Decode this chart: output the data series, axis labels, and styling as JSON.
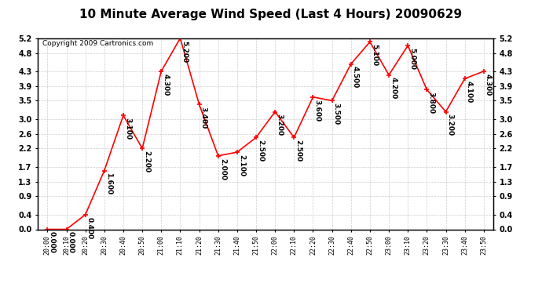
{
  "title": "10 Minute Average Wind Speed (Last 4 Hours) 20090629",
  "copyright": "Copyright 2009 Cartronics.com",
  "x_labels": [
    "20:00",
    "20:10",
    "20:20",
    "20:30",
    "20:40",
    "20:50",
    "21:00",
    "21:10",
    "21:20",
    "21:30",
    "21:40",
    "21:50",
    "22:00",
    "22:10",
    "22:20",
    "22:30",
    "22:40",
    "22:50",
    "23:00",
    "23:10",
    "23:20",
    "23:30",
    "23:40",
    "23:50"
  ],
  "y_values": [
    0.0,
    0.0,
    0.4,
    1.6,
    3.1,
    2.2,
    4.3,
    5.2,
    3.4,
    2.0,
    2.1,
    2.5,
    3.2,
    2.5,
    3.6,
    3.5,
    4.5,
    5.1,
    4.2,
    5.0,
    3.8,
    3.2,
    4.1,
    4.3
  ],
  "y_labels": [
    0.0,
    0.4,
    0.9,
    1.3,
    1.7,
    2.2,
    2.6,
    3.0,
    3.5,
    3.9,
    4.3,
    4.8,
    5.2
  ],
  "annotations": [
    "0.000",
    "0.000",
    "0.400",
    "1.600",
    "3.100",
    "2.200",
    "4.300",
    "5.200",
    "3.400",
    "2.000",
    "2.100",
    "2.500",
    "3.200",
    "2.500",
    "3.600",
    "3.500",
    "4.500",
    "5.100",
    "4.200",
    "5.000",
    "3.800",
    "3.200",
    "4.100",
    "4.300"
  ],
  "ylim": [
    0.0,
    5.2
  ],
  "line_color": "#ff0000",
  "marker_color": "#ff0000",
  "background_color": "#ffffff",
  "grid_color": "#cccccc",
  "title_fontsize": 11,
  "annotation_fontsize": 6.5,
  "copyright_fontsize": 6.5,
  "tick_fontsize": 7,
  "xtick_fontsize": 6
}
